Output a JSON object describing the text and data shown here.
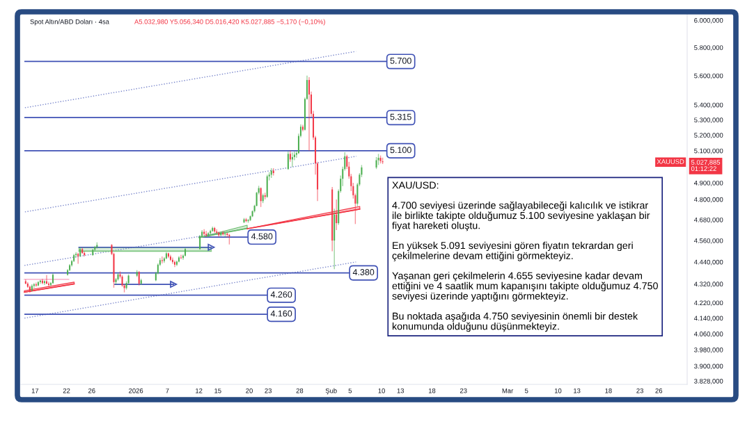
{
  "chart_data": {
    "type": "candlestick",
    "title": "Spot Altın/ABD Doları · 4sa",
    "subtitle": "A5.032,980 Y5.056,340 D5.016,420 K5.027,885 −5,170 (−0,10%)",
    "x": [
      "2025-12-15T12:00",
      "2025-12-15T20:00",
      "2025-12-16T04:00",
      "2025-12-16T12:00",
      "2025-12-16T20:00",
      "2025-12-17T04:00",
      "2025-12-17T12:00",
      "2025-12-17T20:00",
      "2025-12-18T04:00",
      "2025-12-18T12:00",
      "2025-12-18T20:00",
      "2025-12-19T04:00",
      "2025-12-19T12:00",
      "2025-12-19T20:00",
      "2025-12-22T04:00",
      "2025-12-22T12:00",
      "2025-12-22T20:00",
      "2025-12-23T04:00",
      "2025-12-23T12:00",
      "2025-12-23T20:00",
      "2025-12-24T04:00",
      "2025-12-24T12:00",
      "2025-12-24T20:00",
      "2025-12-26T04:00",
      "2025-12-26T12:00",
      "2025-12-26T20:00",
      "2025-12-29T04:00",
      "2025-12-29T12:00",
      "2025-12-29T20:00",
      "2025-12-30T04:00",
      "2025-12-30T12:00",
      "2025-12-30T20:00",
      "2025-12-31T04:00",
      "2025-12-31T12:00",
      "2025-12-31T20:00",
      "2026-01-02T04:00",
      "2026-01-02T12:00",
      "2026-01-02T20:00",
      "2026-01-05T04:00",
      "2026-01-05T12:00",
      "2026-01-05T20:00",
      "2026-01-06T04:00",
      "2026-01-06T12:00",
      "2026-01-06T20:00",
      "2026-01-07T04:00",
      "2026-01-07T12:00",
      "2026-01-07T20:00",
      "2026-01-08T04:00",
      "2026-01-08T12:00",
      "2026-01-08T20:00",
      "2026-01-09T04:00",
      "2026-01-09T12:00",
      "2026-01-09T20:00",
      "2026-01-12T04:00",
      "2026-01-12T12:00",
      "2026-01-12T20:00",
      "2026-01-13T04:00",
      "2026-01-13T12:00",
      "2026-01-13T20:00",
      "2026-01-14T04:00",
      "2026-01-14T12:00",
      "2026-01-14T20:00",
      "2026-01-15T04:00",
      "2026-01-15T12:00",
      "2026-01-15T20:00",
      "2026-01-16T04:00",
      "2026-01-16T12:00",
      "2026-01-16T20:00",
      "2026-01-19T04:00",
      "2026-01-19T12:00",
      "2026-01-19T20:00",
      "2026-01-20T04:00",
      "2026-01-20T12:00",
      "2026-01-20T20:00",
      "2026-01-21T04:00",
      "2026-01-21T12:00",
      "2026-01-21T20:00",
      "2026-01-22T04:00",
      "2026-01-22T12:00",
      "2026-01-22T20:00",
      "2026-01-23T04:00",
      "2026-01-23T12:00",
      "2026-01-23T20:00",
      "2026-01-26T04:00",
      "2026-01-26T12:00",
      "2026-01-26T20:00",
      "2026-01-27T04:00",
      "2026-01-27T12:00",
      "2026-01-27T20:00",
      "2026-01-28T04:00",
      "2026-01-28T12:00",
      "2026-01-28T20:00",
      "2026-01-29T04:00",
      "2026-01-29T12:00",
      "2026-01-29T20:00",
      "2026-01-30T04:00",
      "2026-01-30T12:00",
      "2026-01-30T20:00",
      "2026-02-02T04:00",
      "2026-02-02T12:00",
      "2026-02-02T20:00",
      "2026-02-03T04:00",
      "2026-02-03T12:00",
      "2026-02-03T20:00",
      "2026-02-04T04:00",
      "2026-02-04T12:00",
      "2026-02-04T20:00",
      "2026-02-05T04:00",
      "2026-02-05T12:00",
      "2026-02-05T20:00",
      "2026-02-06T04:00",
      "2026-02-06T12:00",
      "2026-02-06T20:00",
      "2026-02-09T04:00",
      "2026-02-09T12:00",
      "2026-02-09T20:00",
      "2026-02-10T04:00"
    ],
    "ohlc": [
      [
        4335,
        4345,
        4318,
        4322
      ],
      [
        4322,
        4330,
        4300,
        4305
      ],
      [
        4305,
        4312,
        4274,
        4285
      ],
      [
        4285,
        4318,
        4280,
        4310
      ],
      [
        4310,
        4325,
        4298,
        4318
      ],
      [
        4318,
        4328,
        4305,
        4312
      ],
      [
        4312,
        4335,
        4308,
        4330
      ],
      [
        4330,
        4342,
        4320,
        4338
      ],
      [
        4338,
        4348,
        4318,
        4325
      ],
      [
        4325,
        4340,
        4315,
        4335
      ],
      [
        4335,
        4368,
        4318,
        4322
      ],
      [
        4322,
        4332,
        4305,
        4315
      ],
      [
        4315,
        4330,
        4308,
        4325
      ],
      [
        4325,
        4378,
        4320,
        4370
      ],
      [
        4370,
        4400,
        4365,
        4395
      ],
      [
        4395,
        4428,
        4390,
        4422
      ],
      [
        4422,
        4450,
        4415,
        4445
      ],
      [
        4445,
        4485,
        4440,
        4478
      ],
      [
        4478,
        4495,
        4465,
        4485
      ],
      [
        4485,
        4492,
        4430,
        4472
      ],
      [
        4472,
        4520,
        4468,
        4512
      ],
      [
        4512,
        4518,
        4485,
        4490
      ],
      [
        4490,
        4498,
        4470,
        4478
      ],
      [
        4478,
        4512,
        4475,
        4508
      ],
      [
        4508,
        4530,
        4500,
        4525
      ],
      [
        4525,
        4550,
        4515,
        4535
      ],
      [
        4535,
        4540,
        4478,
        4485
      ],
      [
        4485,
        4492,
        4300,
        4330
      ],
      [
        4330,
        4352,
        4318,
        4345
      ],
      [
        4345,
        4378,
        4338,
        4372
      ],
      [
        4372,
        4388,
        4350,
        4360
      ],
      [
        4360,
        4368,
        4305,
        4312
      ],
      [
        4312,
        4320,
        4275,
        4298
      ],
      [
        4298,
        4335,
        4290,
        4325
      ],
      [
        4325,
        4372,
        4318,
        4365
      ],
      [
        4365,
        4395,
        4358,
        4385
      ],
      [
        4385,
        4390,
        4312,
        4322
      ],
      [
        4322,
        4348,
        4315,
        4340
      ],
      [
        4340,
        4385,
        4335,
        4378
      ],
      [
        4378,
        4432,
        4372,
        4425
      ],
      [
        4425,
        4462,
        4418,
        4450
      ],
      [
        4450,
        4470,
        4432,
        4445
      ],
      [
        4445,
        4468,
        4435,
        4460
      ],
      [
        4460,
        4495,
        4455,
        4488
      ],
      [
        4488,
        4492,
        4462,
        4470
      ],
      [
        4470,
        4480,
        4445,
        4452
      ],
      [
        4452,
        4465,
        4430,
        4440
      ],
      [
        4440,
        4448,
        4412,
        4425
      ],
      [
        4425,
        4448,
        4418,
        4442
      ],
      [
        4442,
        4472,
        4438,
        4465
      ],
      [
        4465,
        4480,
        4455,
        4462
      ],
      [
        4462,
        4482,
        4452,
        4475
      ],
      [
        4475,
        4518,
        4470,
        4512
      ],
      [
        4512,
        4592,
        4508,
        4585
      ],
      [
        4585,
        4620,
        4578,
        4610
      ],
      [
        4610,
        4625,
        4588,
        4598
      ],
      [
        4598,
        4615,
        4582,
        4590
      ],
      [
        4590,
        4608,
        4578,
        4602
      ],
      [
        4602,
        4622,
        4595,
        4615
      ],
      [
        4615,
        4640,
        4610,
        4632
      ],
      [
        4632,
        4638,
        4605,
        4612
      ],
      [
        4612,
        4625,
        4598,
        4605
      ],
      [
        4605,
        4612,
        4582,
        4590
      ],
      [
        4590,
        4612,
        4585,
        4605
      ],
      [
        4605,
        4615,
        4588,
        4595
      ],
      [
        4595,
        4608,
        4580,
        4600
      ],
      [
        4600,
        4605,
        4578,
        4592
      ],
      [
        4592,
        4598,
        4538,
        4585
      ],
      [
        4665,
        4690,
        4660,
        4682
      ],
      [
        4682,
        4690,
        4665,
        4672
      ],
      [
        4672,
        4685,
        4662,
        4678
      ],
      [
        4678,
        4705,
        4672,
        4700
      ],
      [
        4700,
        4735,
        4695,
        4730
      ],
      [
        4730,
        4768,
        4722,
        4762
      ],
      [
        4762,
        4845,
        4758,
        4840
      ],
      [
        4840,
        4882,
        4830,
        4868
      ],
      [
        4868,
        4872,
        4755,
        4790
      ],
      [
        4790,
        4835,
        4778,
        4825
      ],
      [
        4825,
        4840,
        4800,
        4815
      ],
      [
        4815,
        4950,
        4810,
        4940
      ],
      [
        4940,
        4965,
        4915,
        4950
      ],
      [
        4950,
        4990,
        4930,
        4975
      ],
      [
        4975,
        4990,
        4945,
        4960
      ],
      [
        4985,
        5095,
        4980,
        5080
      ],
      [
        5080,
        5100,
        5030,
        5045
      ],
      [
        5045,
        5090,
        4998,
        5060
      ],
      [
        5060,
        5095,
        5040,
        5075
      ],
      [
        5075,
        5100,
        5055,
        5085
      ],
      [
        5085,
        5210,
        5080,
        5195
      ],
      [
        5195,
        5270,
        5185,
        5255
      ],
      [
        5255,
        5268,
        5225,
        5235
      ],
      [
        5235,
        5450,
        5230,
        5440
      ],
      [
        5440,
        5600,
        5435,
        5570
      ],
      [
        5570,
        5590,
        5100,
        5470
      ],
      [
        5470,
        5490,
        5320,
        5340
      ],
      [
        5340,
        5360,
        5170,
        5185
      ],
      [
        5185,
        5195,
        4950,
        5020
      ],
      [
        5020,
        5030,
        4790,
        4860
      ],
      [
        4860,
        4875,
        4500,
        4560
      ],
      [
        4560,
        4745,
        4400,
        4710
      ],
      [
        4710,
        4800,
        4620,
        4660
      ],
      [
        4660,
        4860,
        4650,
        4850
      ],
      [
        4850,
        4945,
        4840,
        4925
      ],
      [
        4925,
        5000,
        4880,
        4985
      ],
      [
        4985,
        5091,
        4975,
        5065
      ],
      [
        5065,
        5075,
        4985,
        5000
      ],
      [
        5000,
        5030,
        4925,
        4940
      ],
      [
        4940,
        4955,
        4850,
        4880
      ],
      [
        4880,
        4900,
        4805,
        4825
      ],
      [
        4825,
        4835,
        4655,
        4775
      ],
      [
        4775,
        4900,
        4760,
        4890
      ],
      [
        4890,
        4960,
        4880,
        4950
      ],
      [
        4950,
        5010,
        4935,
        4995
      ],
      [
        4995,
        5060,
        4985,
        5040
      ],
      [
        5040,
        5080,
        5010,
        5055
      ],
      [
        5055,
        5070,
        5020,
        5035
      ],
      [
        5032.98,
        5056.34,
        5016.42,
        5027.885
      ]
    ],
    "colors": [
      "#f23645",
      "#f23645",
      "#f23645",
      "#4caf50",
      "#4caf50",
      "#f23645",
      "#4caf50",
      "#4caf50",
      "#f23645",
      "#4caf50",
      "#f23645",
      "#f23645",
      "#4caf50",
      "#4caf50",
      "#4caf50",
      "#4caf50",
      "#4caf50",
      "#4caf50",
      "#4caf50",
      "#f23645",
      "#4caf50",
      "#f23645",
      "#f23645",
      "#4caf50",
      "#4caf50",
      "#4caf50",
      "#f23645",
      "#f23645",
      "#4caf50",
      "#4caf50",
      "#f23645",
      "#f23645",
      "#f23645",
      "#4caf50",
      "#4caf50",
      "#4caf50",
      "#f23645",
      "#4caf50",
      "#4caf50",
      "#4caf50",
      "#4caf50",
      "#f23645",
      "#4caf50",
      "#4caf50",
      "#f23645",
      "#f23645",
      "#f23645",
      "#f23645",
      "#4caf50",
      "#4caf50",
      "#f23645",
      "#4caf50",
      "#4caf50",
      "#4caf50",
      "#4caf50",
      "#f23645",
      "#f23645",
      "#4caf50",
      "#4caf50",
      "#4caf50",
      "#f23645",
      "#f23645",
      "#f23645",
      "#4caf50",
      "#f23645",
      "#4caf50",
      "#f23645",
      "#f23645",
      "#4caf50",
      "#f23645",
      "#4caf50",
      "#4caf50",
      "#4caf50",
      "#4caf50",
      "#4caf50",
      "#4caf50",
      "#f23645",
      "#4caf50",
      "#f23645",
      "#4caf50",
      "#4caf50",
      "#4caf50",
      "#f23645",
      "#4caf50",
      "#f23645",
      "#4caf50",
      "#4caf50",
      "#4caf50",
      "#4caf50",
      "#4caf50",
      "#f23645",
      "#4caf50",
      "#4caf50",
      "#f23645",
      "#f23645",
      "#f23645",
      "#f23645",
      "#f23645",
      "#f23645",
      "#4caf50",
      "#f23645",
      "#4caf50",
      "#4caf50",
      "#4caf50",
      "#4caf50",
      "#f23645",
      "#f23645",
      "#f23645",
      "#f23645",
      "#f23645",
      "#4caf50",
      "#4caf50",
      "#4caf50",
      "#4caf50",
      "#4caf50",
      "#f23645",
      "#f23645"
    ],
    "series": [
      {
        "type": "line",
        "x": [
          "2025-12-15T09:30",
          "2026-02-05T22:30"
        ],
        "values": [
          5381,
          5772
        ],
        "color": "#7986cb",
        "line_style": "dotted"
      },
      {
        "type": "line",
        "x": [
          "2025-12-15T09:30",
          "2026-02-06T00:00"
        ],
        "values": [
          4726,
          5065
        ],
        "color": "#7986cb",
        "line_style": "dotted"
      },
      {
        "type": "line",
        "x": [
          "2025-12-15T07:40",
          "2026-01-19T16:00"
        ],
        "values": [
          4421,
          4629
        ],
        "color": "#7986cb",
        "line_style": "dotted"
      },
      {
        "type": "line",
        "x": [
          "2025-12-15T07:40",
          "2026-02-05T22:30"
        ],
        "values": [
          4140,
          4440
        ],
        "color": "#7986cb",
        "line_style": "dotted"
      },
      {
        "type": "line",
        "name": "5.700",
        "x": [
          "2025-12-15T09:30",
          "2026-02-10T17:00"
        ],
        "values": [
          5700,
          5700
        ],
        "color": "#3f51b5"
      },
      {
        "type": "line",
        "name": "5.315",
        "x": [
          "2025-12-15T09:30",
          "2026-02-10T17:00"
        ],
        "values": [
          5315,
          5315
        ],
        "color": "#3f51b5"
      },
      {
        "type": "line",
        "name": "5.100",
        "x": [
          "2025-12-15T09:30",
          "2026-02-10T17:00"
        ],
        "values": [
          5100,
          5100
        ],
        "color": "#3f51b5"
      },
      {
        "type": "line",
        "name": "4.580",
        "x": [
          "2026-01-12T01:00",
          "2026-01-19T16:00"
        ],
        "values": [
          4580,
          4580
        ],
        "color": "#3f51b5"
      },
      {
        "type": "line",
        "name": "4.380",
        "x": [
          "2025-12-15T09:30",
          "2026-02-04T19:00"
        ],
        "values": [
          4380,
          4380
        ],
        "color": "#3f51b5"
      },
      {
        "type": "line",
        "name": "4.260",
        "x": [
          "2025-12-15T09:30",
          "2026-01-22T18:00"
        ],
        "values": [
          4260,
          4260
        ],
        "color": "#3f51b5"
      },
      {
        "type": "line",
        "name": "4.160",
        "x": [
          "2025-12-15T09:30",
          "2026-01-22T18:00"
        ],
        "values": [
          4160,
          4160
        ],
        "color": "#3f51b5"
      },
      {
        "type": "line",
        "x": [
          "2025-12-23T23:15",
          "2026-01-13T23:00"
        ],
        "values": [
          4500,
          4500
        ],
        "lower": [
          4500,
          4500
        ],
        "upper": [
          4520,
          4520
        ],
        "color": "#81c784"
      },
      {
        "type": "line",
        "x": [
          "2025-12-23T23:15",
          "2026-01-13T23:00"
        ],
        "values": [
          4522,
          4522
        ],
        "color": "#3f51b5",
        "marker": "triangle"
      },
      {
        "type": "line",
        "x": [
          "2025-12-29T16:00",
          "2026-01-07T23:15"
        ],
        "values": [
          4318,
          4318
        ],
        "color": "#3f51b5",
        "marker": "triangle"
      },
      {
        "type": "line",
        "x": [
          "2026-01-12T01:00",
          "2026-01-19T16:00"
        ],
        "values": [
          4577,
          4630
        ],
        "lower": [
          4577,
          4630
        ],
        "upper": [
          4577,
          4648
        ],
        "color": "#66bb6a"
      },
      {
        "type": "line",
        "x": [
          "2026-01-19T16:00",
          "2026-02-06T13:00"
        ],
        "values": [
          4628,
          4742
        ],
        "lower": [
          4628,
          4742
        ],
        "upper": [
          4628,
          4758
        ],
        "color": "#f23645"
      },
      {
        "type": "line",
        "x": [
          "2025-12-15T07:12",
          "2025-12-23T05:00"
        ],
        "values": [
          4276,
          4320
        ],
        "lower": [
          4276,
          4320
        ],
        "upper": [
          4284,
          4330
        ],
        "color": "#f23645"
      },
      {
        "type": "line",
        "x": [
          "2025-12-15T07:40",
          "2025-12-22T08:00"
        ],
        "values": [
          4345,
          4345
        ],
        "color": "#f8bbd0"
      }
    ],
    "xlim": [
      "2025-12-14T18:00",
      "2026-03-30T12:00"
    ],
    "xticks": [
      {
        "value": "2025-12-17",
        "label": "17"
      },
      {
        "value": "2025-12-22",
        "label": "22"
      },
      {
        "value": "2025-12-26",
        "label": "26"
      },
      {
        "value": "2026-01-02",
        "label": "2026"
      },
      {
        "value": "2026-01-07",
        "label": "7"
      },
      {
        "value": "2026-01-12",
        "label": "12"
      },
      {
        "value": "2026-01-15",
        "label": "15"
      },
      {
        "value": "2026-01-20",
        "label": "20"
      },
      {
        "value": "2026-01-23",
        "label": "23"
      },
      {
        "value": "2026-01-28",
        "label": "28"
      },
      {
        "value": "2026-02-02",
        "label": "Şub"
      },
      {
        "value": "2026-02-05",
        "label": "5"
      },
      {
        "value": "2026-02-10",
        "label": "10"
      },
      {
        "value": "2026-02-13",
        "label": "13"
      },
      {
        "value": "2026-02-18",
        "label": "18"
      },
      {
        "value": "2026-02-23",
        "label": "23"
      },
      {
        "value": "2026-03-02",
        "label": "Mar"
      },
      {
        "value": "2026-03-05",
        "label": "5"
      },
      {
        "value": "2026-03-10",
        "label": "10"
      },
      {
        "value": "2026-03-13",
        "label": "13"
      },
      {
        "value": "2026-03-18",
        "label": "18"
      },
      {
        "value": "2026-03-23",
        "label": "23"
      },
      {
        "value": "2026-03-26",
        "label": "26"
      }
    ],
    "ylim": [
      3812,
      6048
    ],
    "yticks": [
      {
        "value": 6000,
        "label": "6.000,000"
      },
      {
        "value": 5800,
        "label": "5.800,000"
      },
      {
        "value": 5600,
        "label": "5.600,000"
      },
      {
        "value": 5400,
        "label": "5.400,000"
      },
      {
        "value": 5300,
        "label": "5.300,000"
      },
      {
        "value": 5200,
        "label": "5.200,000"
      },
      {
        "value": 5100,
        "label": "5.100,000"
      },
      {
        "value": 4900,
        "label": "4.900,000"
      },
      {
        "value": 4800,
        "label": "4.800,000"
      },
      {
        "value": 4680,
        "label": "4.680,000"
      },
      {
        "value": 4560,
        "label": "4.560,000"
      },
      {
        "value": 4440,
        "label": "4.440,000"
      },
      {
        "value": 4320,
        "label": "4.320,000"
      },
      {
        "value": 4220,
        "label": "4.220,000"
      },
      {
        "value": 4140,
        "label": "4.140,000"
      },
      {
        "value": 4060,
        "label": "4.060,000"
      },
      {
        "value": 3980,
        "label": "3.980,000"
      },
      {
        "value": 3900,
        "label": "3.900,000"
      },
      {
        "value": 3828,
        "label": "3.828,000"
      }
    ],
    "log": "y",
    "annotations": [
      "XAU/USD:\n\n4.700 seviyesi üzerinde sağlayabileceği kalıcılık ve istikrar\nile birlikte takipte olduğumuz 5.100 seviyesine yaklaşan bir\nfiyat hareketi oluştu.\n\nEn yüksek 5.091 seviyesini gören fiyatın tekrardan geri\nçekilmelerine devam ettiğini görmekteyiz.\n\nYaşanan geri çekilmelerin 4.655 seviyesine kadar devam\nettiğini ve 4 saatlik mum kapanışını takipte olduğumuz 4.750\nseviyesi üzerinde yaptığını görmekteyiz.\n\nBu noktada aşağıda 4.750 seviyesinin önemli bir destek\nkonumunda olduğunu düşünmekteyiz.",
      "XAUUSD",
      "5.027,885\n01:12:22"
    ]
  }
}
